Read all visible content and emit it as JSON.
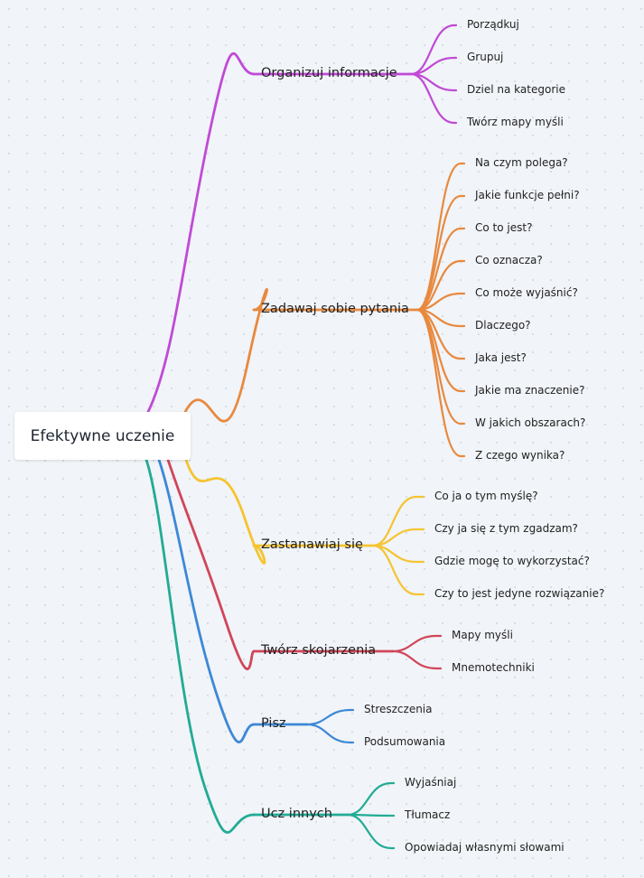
{
  "root": {
    "label": "Efektywne uczenie"
  },
  "branches": [
    {
      "label": "Organizuj informacje",
      "color": "#c04ad6",
      "leaves": [
        "Porządkuj",
        "Grupuj",
        "Dziel na kategorie",
        "Twórz mapy myśli"
      ]
    },
    {
      "label": "Zadawaj sobie pytania",
      "color": "#e8893e",
      "leaves": [
        "Na czym polega?",
        "Jakie funkcje pełni?",
        "Co to jest?",
        "Co oznacza?",
        "Co może wyjaśnić?",
        "Dlaczego?",
        "Jaka jest?",
        "Jakie ma znaczenie?",
        "W jakich obszarach?",
        "Z czego wynika?"
      ]
    },
    {
      "label": "Zastanawiaj się",
      "color": "#f5c431",
      "leaves": [
        "Co ja o tym myślę?",
        "Czy ja się z tym zgadzam?",
        "Gdzie mogę to wykorzystać?",
        "Czy to jest jedyne rozwiązanie?"
      ]
    },
    {
      "label": "Twórz skojarzenia",
      "color": "#d0465a",
      "leaves": [
        "Mapy myśli",
        "Mnemotechniki"
      ]
    },
    {
      "label": "Pisz",
      "color": "#3d88d6",
      "leaves": [
        "Streszczenia",
        "Podsumowania"
      ]
    },
    {
      "label": "Ucz innych",
      "color": "#22ab95",
      "leaves": [
        "Wyjaśniaj",
        "Tłumacz",
        "Opowiadaj własnymi słowami"
      ]
    }
  ]
}
